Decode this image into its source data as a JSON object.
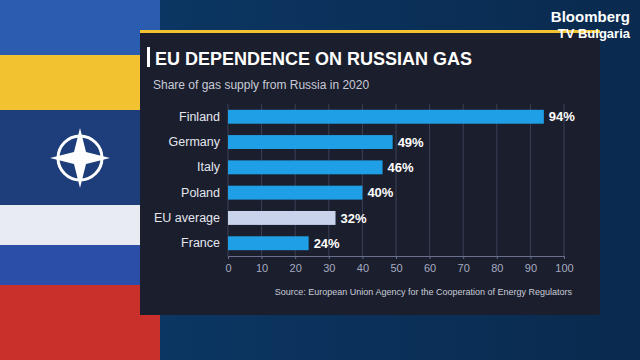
{
  "chart_data": {
    "type": "bar",
    "orientation": "horizontal",
    "title": "EU DEPENDENCE ON RUSSIAN GAS",
    "subtitle": "Share of gas supply from Russia in 2020",
    "categories": [
      "Finland",
      "Germany",
      "Italy",
      "Poland",
      "EU average",
      "France"
    ],
    "values": [
      94,
      49,
      46,
      40,
      32,
      24
    ],
    "value_labels": [
      "94%",
      "49%",
      "46%",
      "40%",
      "32%",
      "24%"
    ],
    "colors": [
      "#1fa0e6",
      "#1fa0e6",
      "#1fa0e6",
      "#1fa0e6",
      "#c9d4ec",
      "#1fa0e6"
    ],
    "xlim": [
      0,
      100
    ],
    "xticks": [
      0,
      10,
      20,
      30,
      40,
      50,
      60,
      70,
      80,
      90,
      100
    ],
    "grid": true,
    "data_labels": true,
    "source": "Source: European Union Agency for the Cooperation of Energy Regulators",
    "annotations": [
      "Bloomberg",
      "TV Bulgaria"
    ]
  }
}
